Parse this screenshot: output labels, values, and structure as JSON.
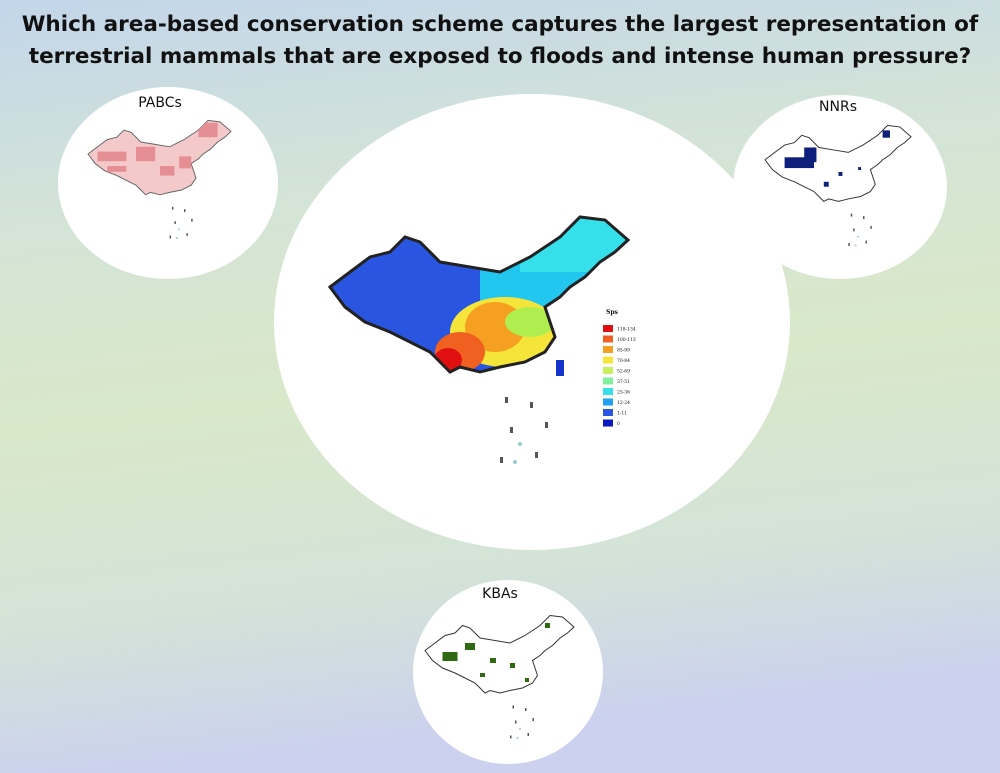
{
  "title": [
    "Which area-based conservation scheme captures the largest representation of",
    "terrestrial mammals that are exposed to floods and intense human pressure?"
  ],
  "panels": [
    {
      "label": "PABCs"
    },
    {
      "label": "NNRs"
    },
    {
      "label": "KBAs"
    }
  ],
  "legend": {
    "title": "Sps",
    "items": [
      "118-134",
      "100-113",
      "85-99",
      "70-84",
      "52-69",
      "37-51",
      "25-36",
      "12-24",
      "1-11",
      "0"
    ]
  }
}
